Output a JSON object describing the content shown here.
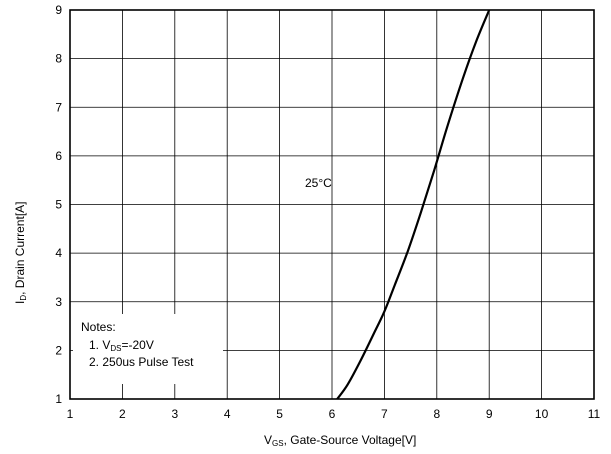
{
  "chart_data": {
    "type": "line",
    "title": "",
    "xlabel_main": "V",
    "xlabel_sub": "GS",
    "xlabel_rest": ", Gate-Source Voltage[V]",
    "ylabel_main": "I",
    "ylabel_sub": "D",
    "ylabel_rest": ", Drain Current[A]",
    "xlim": [
      1,
      11
    ],
    "ylim": [
      1,
      9
    ],
    "x_ticks": [
      1,
      2,
      3,
      4,
      5,
      6,
      7,
      8,
      9,
      10,
      11
    ],
    "y_ticks": [
      1,
      2,
      3,
      4,
      5,
      6,
      7,
      8,
      9
    ],
    "grid": true,
    "series": [
      {
        "name": "",
        "x": [
          6.1,
          6.3,
          6.55,
          6.8,
          7.0,
          7.2,
          7.45,
          7.7,
          7.95,
          8.2,
          8.5,
          8.75,
          9.0
        ],
        "y": [
          1.0,
          1.3,
          1.8,
          2.35,
          2.8,
          3.35,
          4.05,
          4.85,
          5.7,
          6.6,
          7.6,
          8.35,
          9.0
        ]
      }
    ],
    "annotations": {
      "temperature": "25°C",
      "notes_title": "Notes:",
      "note1_prefix": "1. V",
      "note1_sub": "DS",
      "note1_suffix": "=-20V",
      "note2": "2. 250us Pulse Test"
    }
  }
}
